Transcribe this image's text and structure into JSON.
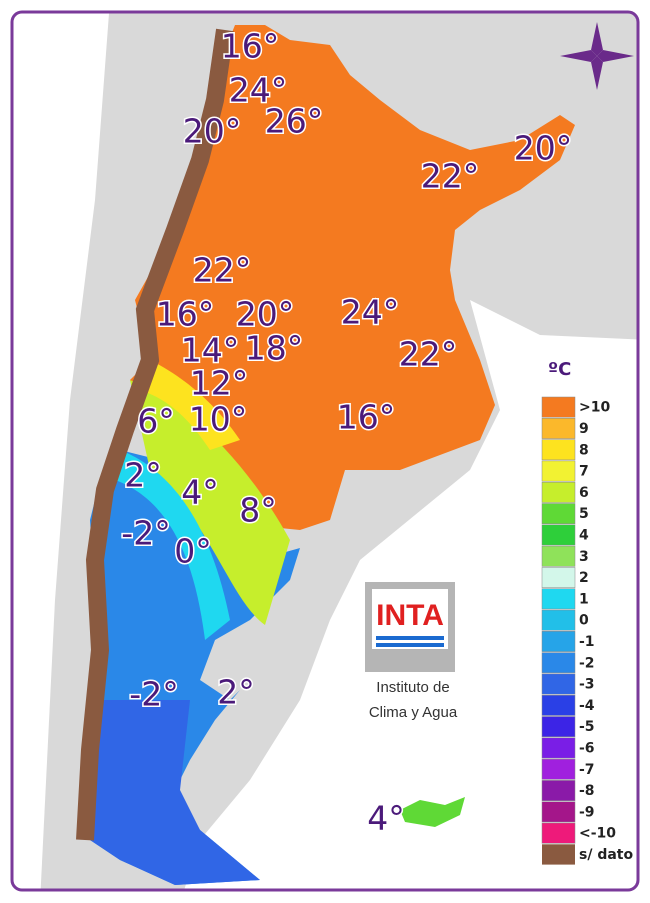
{
  "map": {
    "isotherm_labels": [
      "16°",
      "24°",
      "20°",
      "26°",
      "22°",
      "20°",
      "22°",
      "16°",
      "20°",
      "24°",
      "14°",
      "18°",
      "22°",
      "12°",
      "6°",
      "10°",
      "16°",
      "2°",
      "4°",
      "8°",
      "-2°",
      "0°",
      "-2°",
      "2°",
      "4°"
    ]
  },
  "legend": {
    "title": "ºC",
    "items": [
      {
        "label": ">10",
        "color": "#f47a20"
      },
      {
        "label": "9",
        "color": "#fbb82b"
      },
      {
        "label": "8",
        "color": "#fde31f"
      },
      {
        "label": "7",
        "color": "#f2f232"
      },
      {
        "label": "6",
        "color": "#c6ee2c"
      },
      {
        "label": "5",
        "color": "#5fd936"
      },
      {
        "label": "4",
        "color": "#2ecf3a"
      },
      {
        "label": "3",
        "color": "#8fe25a"
      },
      {
        "label": "2",
        "color": "#d3f7ea"
      },
      {
        "label": "1",
        "color": "#1fd8f0"
      },
      {
        "label": "0",
        "color": "#22bfe8"
      },
      {
        "label": "-1",
        "color": "#26a4e8"
      },
      {
        "label": "-2",
        "color": "#2a88e8"
      },
      {
        "label": "-3",
        "color": "#3066e6"
      },
      {
        "label": "-4",
        "color": "#2a40e6"
      },
      {
        "label": "-5",
        "color": "#3c24e6"
      },
      {
        "label": "-6",
        "color": "#7a1ee6"
      },
      {
        "label": "-7",
        "color": "#a020de"
      },
      {
        "label": "-8",
        "color": "#8a1aa8"
      },
      {
        "label": "-9",
        "color": "#a4168a"
      },
      {
        "label": "<-10",
        "color": "#ee1a7a"
      }
    ],
    "no_data": "s/ dato"
  },
  "logo": {
    "text": "INTA",
    "caption": [
      "Instituto de",
      "Clima y Agua"
    ]
  }
}
